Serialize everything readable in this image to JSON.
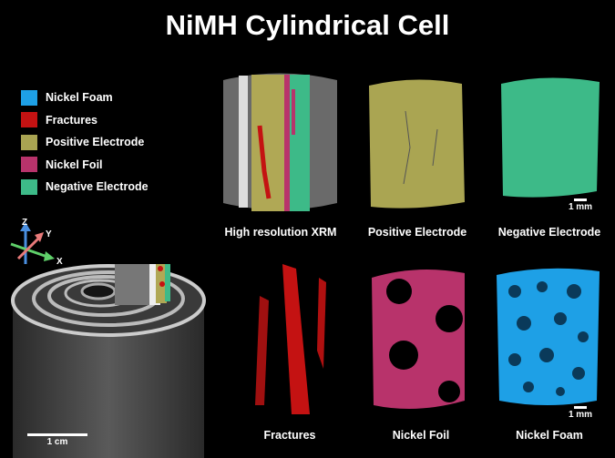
{
  "title": "NiMH Cylindrical Cell",
  "legend": [
    {
      "label": "Nickel Foam",
      "color": "#1ea0e6"
    },
    {
      "label": "Fractures",
      "color": "#c41212"
    },
    {
      "label": "Positive Electrode",
      "color": "#a9a452"
    },
    {
      "label": "Nickel Foil",
      "color": "#b8336b"
    },
    {
      "label": "Negative Electrode",
      "color": "#3dba88"
    }
  ],
  "axes": {
    "z": "Z",
    "y": "Y",
    "x": "X"
  },
  "panels": [
    {
      "caption": "High resolution XRM"
    },
    {
      "caption": "Positive Electrode"
    },
    {
      "caption": "Negative Electrode"
    },
    {
      "caption": "Fractures"
    },
    {
      "caption": "Nickel Foil"
    },
    {
      "caption": "Nickel Foam"
    }
  ],
  "scale_bars": {
    "top": "1 mm",
    "bottom": "1 mm",
    "cell": "1 cm"
  }
}
